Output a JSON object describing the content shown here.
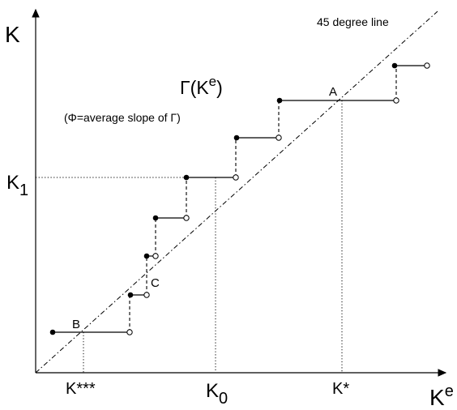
{
  "diagram": {
    "y_axis_label": "K",
    "x_axis_label": "K",
    "x_axis_label_superscript": "e",
    "diagonal_label": "45 degree line",
    "function_label": "Γ(K",
    "function_label_superscript": "e",
    "function_label_close": ")",
    "note": "(Φ=average slope of Γ)",
    "k1_label": "K",
    "k1_subscript": "1",
    "k0_label": "K",
    "k0_subscript": "0",
    "kstar_label": "K*",
    "ktriple_label": "K***",
    "point_a": "A",
    "point_b": "B",
    "point_c": "C"
  }
}
